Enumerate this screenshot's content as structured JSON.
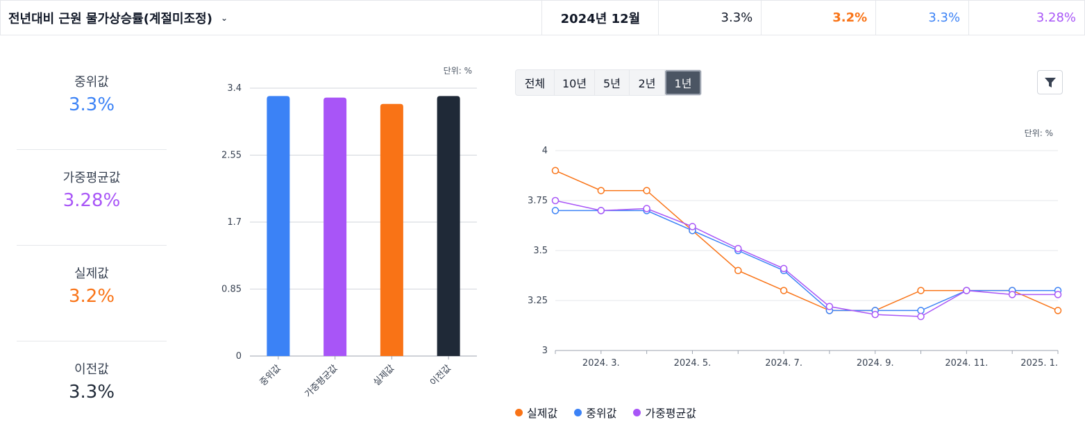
{
  "header": {
    "title": "전년대비 근원 물가상승률(계절미조정)",
    "period": "2024년 12월",
    "values": [
      "3.3%",
      "3.2%",
      "3.3%",
      "3.28%"
    ]
  },
  "stats": [
    {
      "label": "중위값",
      "value": "3.3%",
      "color": "#3b82f6"
    },
    {
      "label": "가중평균값",
      "value": "3.28%",
      "color": "#a855f7"
    },
    {
      "label": "실제값",
      "value": "3.2%",
      "color": "#f97316"
    },
    {
      "label": "이전값",
      "value": "3.3%",
      "color": "#1f2937"
    }
  ],
  "range_buttons": [
    "전체",
    "10년",
    "5년",
    "2년",
    "1년"
  ],
  "active_range": "1년",
  "legend": [
    {
      "label": "실제값",
      "color": "#f97316"
    },
    {
      "label": "중위값",
      "color": "#3b82f6"
    },
    {
      "label": "가중평균값",
      "color": "#a855f7"
    }
  ],
  "chart_data": [
    {
      "type": "bar",
      "unit_label": "단위: %",
      "categories": [
        "중위값",
        "가중평균값",
        "실제값",
        "이전값"
      ],
      "values": [
        3.3,
        3.28,
        3.2,
        3.3
      ],
      "colors": [
        "#3b82f6",
        "#a855f7",
        "#f97316",
        "#1f2937"
      ],
      "yticks": [
        0,
        0.85,
        1.7,
        2.55,
        3.4
      ],
      "ylim": [
        0,
        3.4
      ]
    },
    {
      "type": "line",
      "unit_label": "단위: %",
      "x": [
        "2024. 2.",
        "2024. 3.",
        "2024. 4.",
        "2024. 5.",
        "2024. 6.",
        "2024. 7.",
        "2024. 8.",
        "2024. 9.",
        "2024. 10.",
        "2024. 11.",
        "2024. 12.",
        "2025. 1."
      ],
      "xticks": [
        "2024. 3.",
        "2024. 5.",
        "2024. 7.",
        "2024. 9.",
        "2024. 11.",
        "2025. 1."
      ],
      "yticks": [
        3,
        3.25,
        3.5,
        3.75,
        4
      ],
      "ylim": [
        3,
        4
      ],
      "series": [
        {
          "name": "실제값",
          "color": "#f97316",
          "values": [
            3.9,
            3.8,
            3.8,
            3.6,
            3.4,
            3.3,
            3.2,
            3.2,
            3.3,
            3.3,
            3.3,
            3.2
          ]
        },
        {
          "name": "중위값",
          "color": "#3b82f6",
          "values": [
            3.7,
            3.7,
            3.7,
            3.6,
            3.5,
            3.4,
            3.2,
            3.2,
            3.2,
            3.3,
            3.3,
            3.3
          ]
        },
        {
          "name": "가중평균값",
          "color": "#a855f7",
          "values": [
            3.75,
            3.7,
            3.71,
            3.62,
            3.51,
            3.41,
            3.22,
            3.18,
            3.17,
            3.3,
            3.28,
            3.28
          ]
        }
      ]
    }
  ]
}
